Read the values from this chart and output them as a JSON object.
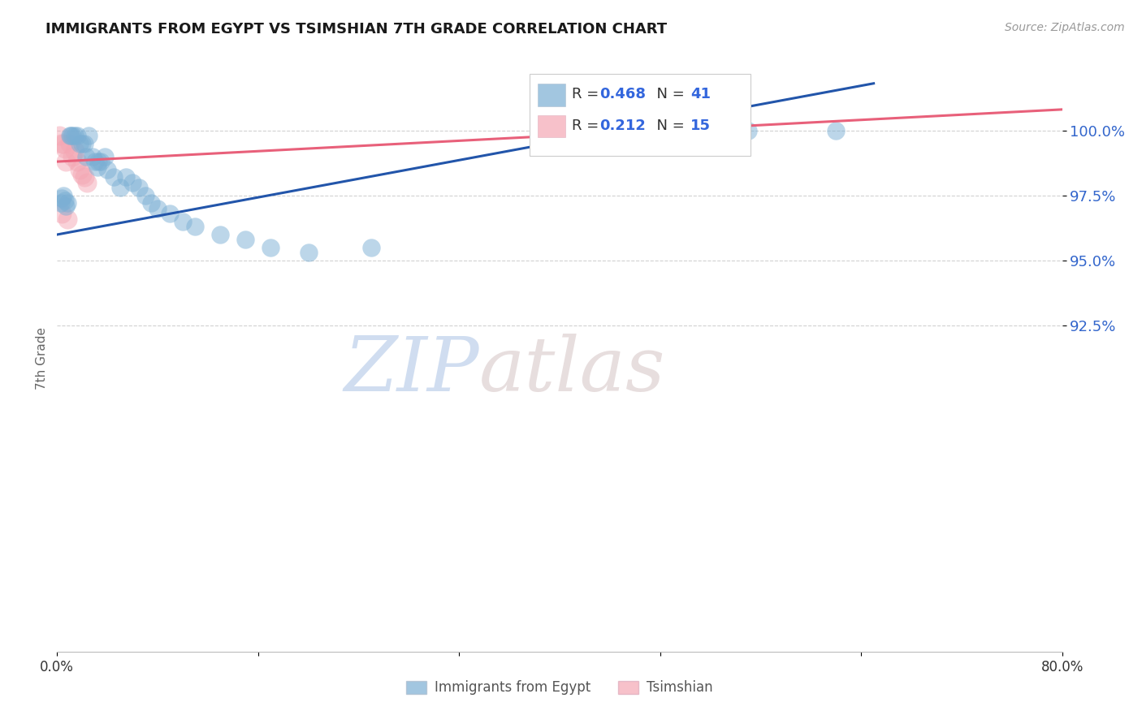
{
  "title": "IMMIGRANTS FROM EGYPT VS TSIMSHIAN 7TH GRADE CORRELATION CHART",
  "source": "Source: ZipAtlas.com",
  "ylabel": "7th Grade",
  "xlim": [
    0.0,
    80.0
  ],
  "ylim": [
    80.0,
    102.5
  ],
  "yticks": [
    92.5,
    95.0,
    97.5,
    100.0
  ],
  "ytick_labels": [
    "92.5%",
    "95.0%",
    "97.5%",
    "100.0%"
  ],
  "xticks": [
    0.0,
    16.0,
    32.0,
    48.0,
    64.0,
    80.0
  ],
  "xtick_labels": [
    "0.0%",
    "",
    "",
    "",
    "",
    "80.0%"
  ],
  "legend1_label": "Immigrants from Egypt",
  "legend2_label": "Tsimshian",
  "r1": "0.468",
  "n1": "41",
  "r2": "0.212",
  "n2": "15",
  "color_blue": "#7BAFD4",
  "color_pink": "#F4A7B4",
  "color_blue_line": "#2255AA",
  "color_pink_line": "#E8607A",
  "watermark_zip": "ZIP",
  "watermark_atlas": "atlas",
  "blue_scatter_x": [
    0.3,
    0.5,
    0.6,
    0.8,
    1.0,
    1.2,
    1.4,
    1.6,
    1.8,
    2.0,
    2.2,
    2.5,
    2.8,
    3.0,
    3.2,
    3.5,
    3.8,
    4.0,
    4.5,
    5.0,
    5.5,
    6.0,
    6.5,
    7.0,
    7.5,
    8.0,
    9.0,
    10.0,
    11.0,
    13.0,
    15.0,
    17.0,
    20.0,
    25.0,
    0.4,
    0.7,
    1.1,
    2.3,
    3.3,
    55.0,
    62.0
  ],
  "blue_scatter_y": [
    97.2,
    97.5,
    97.3,
    97.2,
    99.8,
    99.8,
    99.8,
    99.8,
    99.5,
    99.5,
    99.5,
    99.8,
    99.0,
    98.8,
    98.6,
    98.8,
    99.0,
    98.5,
    98.2,
    97.8,
    98.2,
    98.0,
    97.8,
    97.5,
    97.2,
    97.0,
    96.8,
    96.5,
    96.3,
    96.0,
    95.8,
    95.5,
    95.3,
    95.5,
    97.4,
    97.1,
    99.8,
    99.0,
    98.8,
    100.0,
    100.0
  ],
  "pink_scatter_x": [
    0.2,
    0.3,
    0.5,
    0.6,
    0.7,
    1.0,
    1.2,
    1.4,
    1.8,
    2.0,
    2.4,
    0.4,
    0.8,
    1.6,
    2.2
  ],
  "pink_scatter_y": [
    99.8,
    99.5,
    99.5,
    99.3,
    98.8,
    99.5,
    99.0,
    99.2,
    98.5,
    98.3,
    98.0,
    96.8,
    96.6,
    98.8,
    98.2
  ],
  "blue_line_x": [
    0.0,
    65.0
  ],
  "blue_line_y": [
    96.0,
    101.8
  ],
  "pink_line_x": [
    0.0,
    80.0
  ],
  "pink_line_y": [
    98.8,
    100.8
  ]
}
